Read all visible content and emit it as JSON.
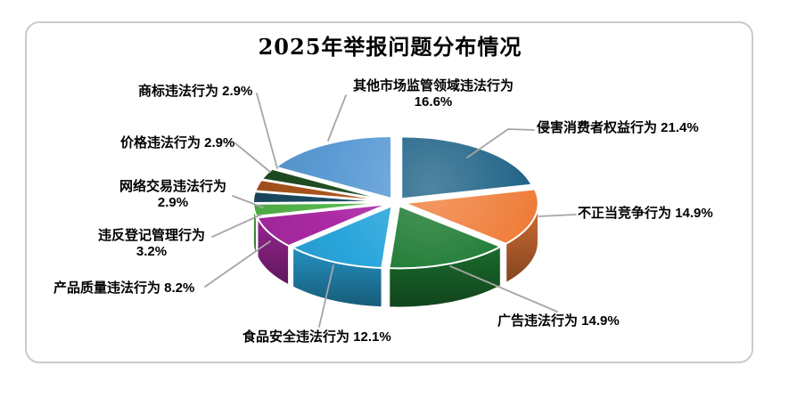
{
  "title": "2025年举报问题分布情况",
  "colors": {
    "leader_line": "#A6A6A6",
    "card_border": "#CBCBCB",
    "text": "#000000",
    "background": "#FFFFFF"
  },
  "chart_data": {
    "type": "pie",
    "style": "3d-exploded",
    "title": "2025年举报问题分布情况",
    "unit": "%",
    "total": 100.0,
    "start_angle_deg": 0,
    "direction": "clockwise",
    "legend": "none",
    "slices": [
      {
        "label": "侵害消费者权益行为",
        "value": 21.4,
        "color": "#1F6287",
        "callout_lines": [
          "侵害消费者权益行为 21.4%"
        ]
      },
      {
        "label": "不正当竞争行为",
        "value": 14.9,
        "color": "#EF7D3A",
        "callout_lines": [
          "不正当竞争行为 14.9%"
        ]
      },
      {
        "label": "广告违法行为",
        "value": 14.9,
        "color": "#1E7B33",
        "callout_lines": [
          "广告违法行为 14.9%"
        ]
      },
      {
        "label": "食品安全违法行为",
        "value": 12.1,
        "color": "#29A5DB",
        "callout_lines": [
          "食品安全违法行为 12.1%"
        ]
      },
      {
        "label": "产品质量违法行为",
        "value": 8.2,
        "color": "#AC2AA6",
        "callout_lines": [
          "产品质量违法行为 8.2%"
        ]
      },
      {
        "label": "违反登记管理行为",
        "value": 3.2,
        "color": "#55B84B",
        "callout_lines": [
          "违反登记管理行为",
          "3.2%"
        ]
      },
      {
        "label": "网络交易违法行为",
        "value": 2.9,
        "color": "#1A4A61",
        "callout_lines": [
          "网络交易违法行为",
          "2.9%"
        ]
      },
      {
        "label": "价格违法行为",
        "value": 2.9,
        "color": "#AC541C",
        "callout_lines": [
          "价格违法行为 2.9%"
        ]
      },
      {
        "label": "商标违法行为",
        "value": 2.9,
        "color": "#204D22",
        "callout_lines": [
          "商标违法行为 2.9%"
        ]
      },
      {
        "label": "其他市场监管领域违法行为",
        "value": 16.6,
        "color": "#5B9BD5",
        "callout_lines": [
          "其他市场监管领域违法行为",
          "16.6%"
        ]
      }
    ]
  }
}
